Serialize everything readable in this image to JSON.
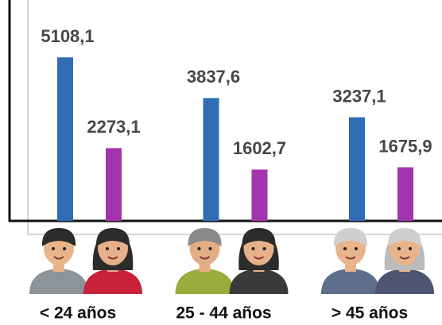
{
  "chart_data": {
    "type": "bar",
    "categories": [
      "< 24 años",
      "25 - 44 años",
      "> 45 años"
    ],
    "series": [
      {
        "color": "#2f6db5",
        "values": [
          5108.1,
          3837.6,
          3237.1
        ],
        "value_labels": [
          "5108,1",
          "3837,6",
          "3237,1"
        ]
      },
      {
        "color": "#a334ad",
        "values": [
          2273.1,
          1602.7,
          1675.9
        ],
        "value_labels": [
          "2273,1",
          "1602,7",
          "1675,9"
        ]
      }
    ],
    "ylim": [
      0,
      6900
    ]
  }
}
